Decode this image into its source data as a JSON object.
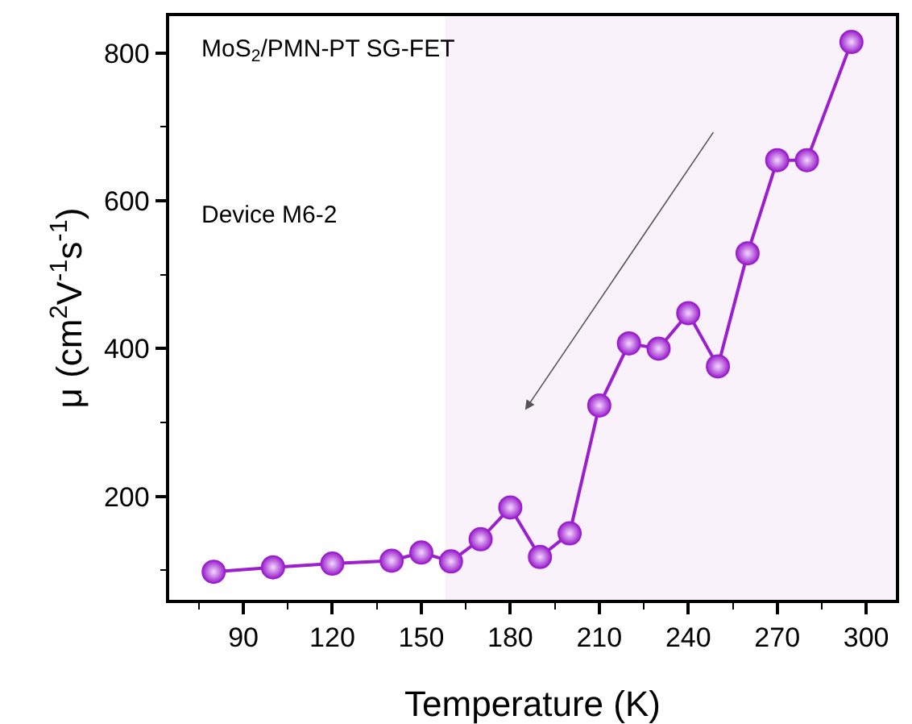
{
  "chart_data": {
    "type": "line",
    "xlabel": "Temperature (K)",
    "ylabel": "μ (cm$^{2}$V$^{-1}$s$^{-1}$)",
    "annotations": [
      "MoS$_{2}$/PMN-PT SG-FET",
      "Device M6-2"
    ],
    "x": [
      80,
      100,
      120,
      140,
      150,
      160,
      170,
      180,
      190,
      200,
      210,
      220,
      230,
      240,
      250,
      260,
      270,
      280,
      295
    ],
    "series": [
      {
        "color": "#9b1fcc",
        "values": [
          98,
          104,
          109,
          113,
          124,
          112,
          142,
          185,
          118,
          150,
          323,
          407,
          400,
          448,
          376,
          529,
          655,
          655,
          815
        ]
      }
    ],
    "xlim": [
      65,
      310
    ],
    "ylim": [
      60,
      850
    ],
    "xticks": [
      {
        "value": 75,
        "label": null
      },
      90,
      {
        "value": 105,
        "label": null
      },
      120,
      {
        "value": 135,
        "label": null
      },
      150,
      {
        "value": 165,
        "label": null
      },
      180,
      {
        "value": 195,
        "label": null
      },
      210,
      {
        "value": 225,
        "label": null
      },
      240,
      {
        "value": 255,
        "label": null
      },
      270,
      {
        "value": 285,
        "label": null
      },
      300
    ],
    "yticks": [
      {
        "value": 100,
        "label": null
      },
      200,
      {
        "value": 300,
        "label": null
      },
      400,
      {
        "value": 500,
        "label": null
      },
      600,
      {
        "value": 700,
        "label": null
      },
      800
    ],
    "bands": [
      {
        "axis": "x",
        "from": 158,
        "to": 310,
        "color": "#f9f2fa"
      }
    ],
    "marker": "circle",
    "line_style": "solid"
  }
}
